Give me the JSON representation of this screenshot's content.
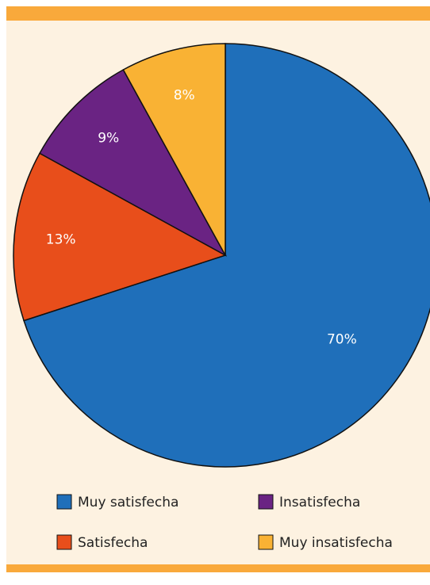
{
  "chart_data": {
    "type": "pie",
    "categories": [
      "Muy satisfecha",
      "Satisfecha",
      "Insatisfecha",
      "Muy insatisfecha"
    ],
    "values": [
      70,
      13,
      9,
      8
    ],
    "value_labels": [
      "70%",
      "13%",
      "9%",
      "8%"
    ],
    "colors": [
      "#1f6fba",
      "#e84e1b",
      "#6a2383",
      "#f9b234"
    ]
  }
}
